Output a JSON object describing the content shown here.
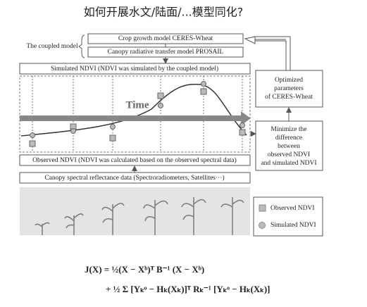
{
  "header": {
    "title": "如何开展水文/陆面/...模型同化?"
  },
  "diagram": {
    "coupled_label": "The coupled model",
    "crop_model": "Crop growth model CERES-Wheat",
    "canopy_model": "Canopy radiative transfer model PROSAIL",
    "simulated": "Simulated NDVI (NDVI was simulated by the coupled model)",
    "time": "Time",
    "observed": "Observed NDVI (NDVI was calculated based on the observed spectral data)",
    "reflectance": "Canopy spectral reflectance data (Spectroradiometers, Satellites···)",
    "optimized": [
      "Optimized",
      "parameters",
      "of CERES-Wheat"
    ],
    "minimize": [
      "Minimize the",
      "difference",
      "between",
      "observed NDVI",
      "and simulated NDVI"
    ],
    "legend": [
      "Observed NDVI",
      "Simulated NDVI"
    ]
  },
  "formula": {
    "line1": "J(X) = ½(X − Xᵇ)ᵀ B⁻¹ (X − Xᵇ)",
    "line2": "+ ½ Σ [Yₖᵒ − Hₖ(Xₖ)]ᵀ Rₖ⁻¹ [Yₖᵒ − Hₖ(Xₖ)]"
  }
}
